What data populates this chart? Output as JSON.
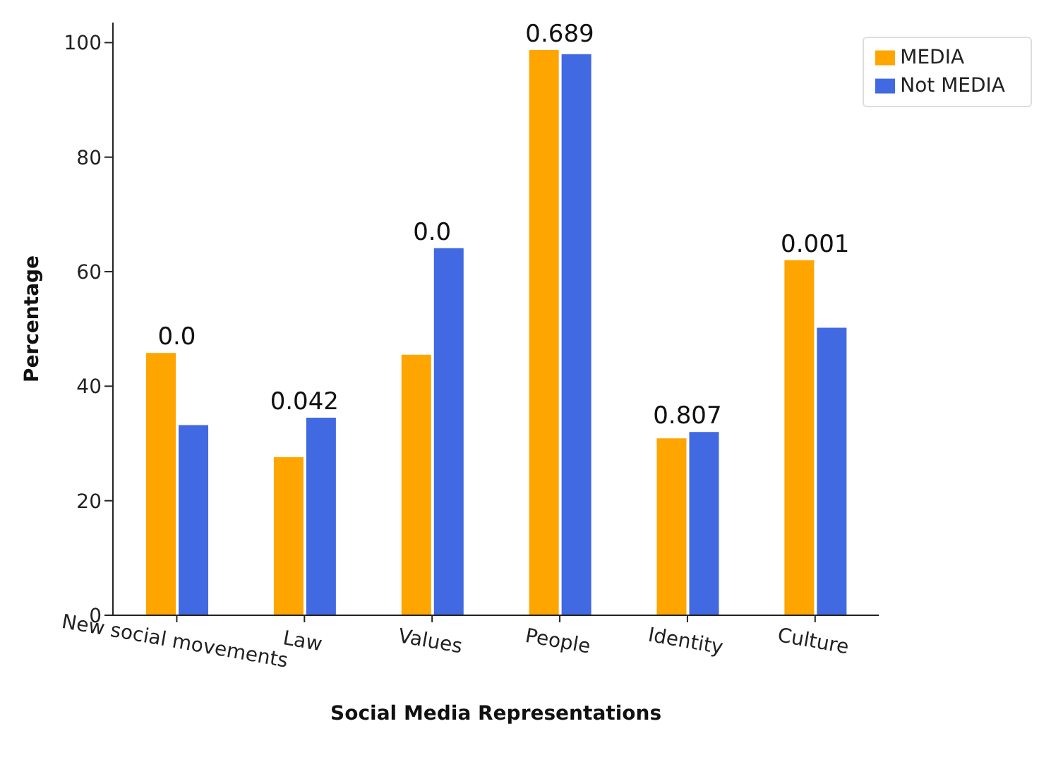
{
  "chart_data": {
    "type": "bar",
    "xlabel": "Social Media Representations",
    "ylabel": "Percentage",
    "categories": [
      "New social movements",
      "Law",
      "Values",
      "People",
      "Identity",
      "Culture"
    ],
    "series": [
      {
        "name": "MEDIA",
        "color": "#ffa500",
        "values": [
          45.8,
          27.6,
          45.5,
          98.7,
          30.9,
          62.0
        ]
      },
      {
        "name": "Not MEDIA",
        "color": "#4169e1",
        "values": [
          33.2,
          34.5,
          64.1,
          98.0,
          32.0,
          50.2
        ]
      }
    ],
    "ylim": [
      0,
      103.5
    ],
    "yticks": [
      0,
      20,
      40,
      60,
      80,
      100
    ],
    "grid": false,
    "legend": "top right",
    "annotations": [
      {
        "text": "0.0",
        "x": "New social movements",
        "y": 45.8
      },
      {
        "text": "0.042",
        "x": "Law",
        "y": 34.5
      },
      {
        "text": "0.0",
        "x": "Values",
        "y": 64.1
      },
      {
        "text": "0.689",
        "x": "People",
        "y": 98.7
      },
      {
        "text": "0.807",
        "x": "Identity",
        "y": 32.0
      },
      {
        "text": "0.001",
        "x": "Culture",
        "y": 62.0
      }
    ]
  }
}
